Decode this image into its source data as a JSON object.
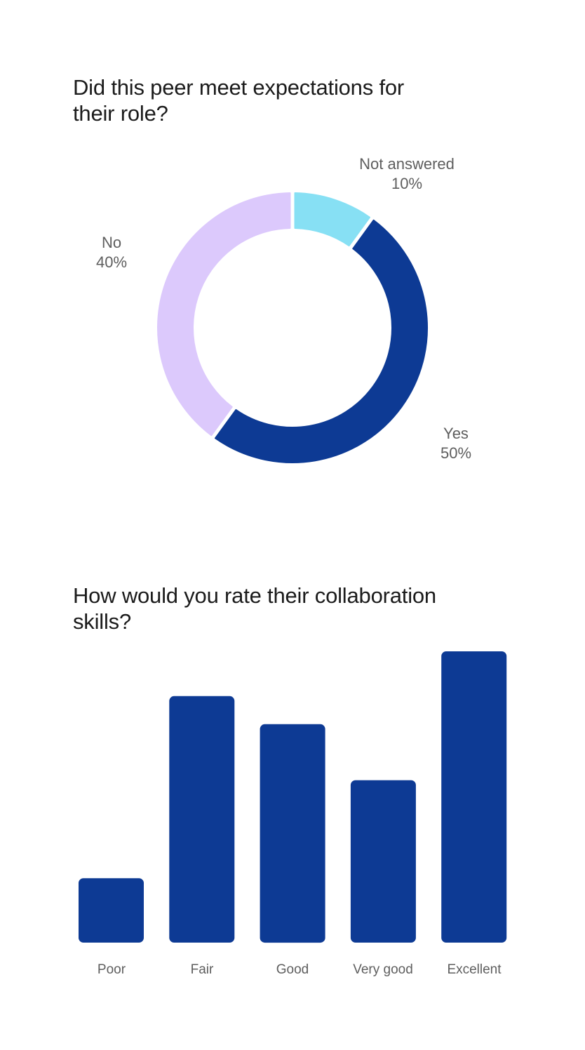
{
  "colors": {
    "yes": "#0d3a94",
    "no": "#dcc9fc",
    "not_answered": "#87e0f4",
    "bar": "#0d3a94"
  },
  "chart_data": [
    {
      "type": "pie",
      "style": "donut",
      "title": "Did this peer meet expectations for their role?",
      "slices": [
        {
          "label": "Not answered",
          "value": 10,
          "display": "10%"
        },
        {
          "label": "Yes",
          "value": 50,
          "display": "50%"
        },
        {
          "label": "No",
          "value": 40,
          "display": "40%"
        }
      ],
      "start_angle_deg": 0,
      "direction": "clockwise"
    },
    {
      "type": "bar",
      "title": "How would you rate their collaboration skills?",
      "categories": [
        "Poor",
        "Fair",
        "Good",
        "Very good",
        "Excellent"
      ],
      "values": [
        2.3,
        8.8,
        7.8,
        5.8,
        10.4
      ],
      "ylim": [
        0,
        10.4
      ],
      "xlabel": "",
      "ylabel": "",
      "grid": false
    }
  ]
}
